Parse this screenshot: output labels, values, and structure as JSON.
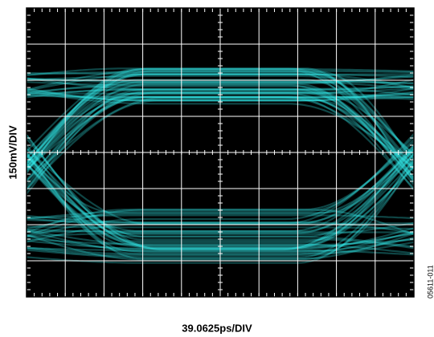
{
  "y_axis_label": "150mV/DIV",
  "x_axis_label": "39.0625ps/DIV",
  "figure_id": "05611-011"
}
